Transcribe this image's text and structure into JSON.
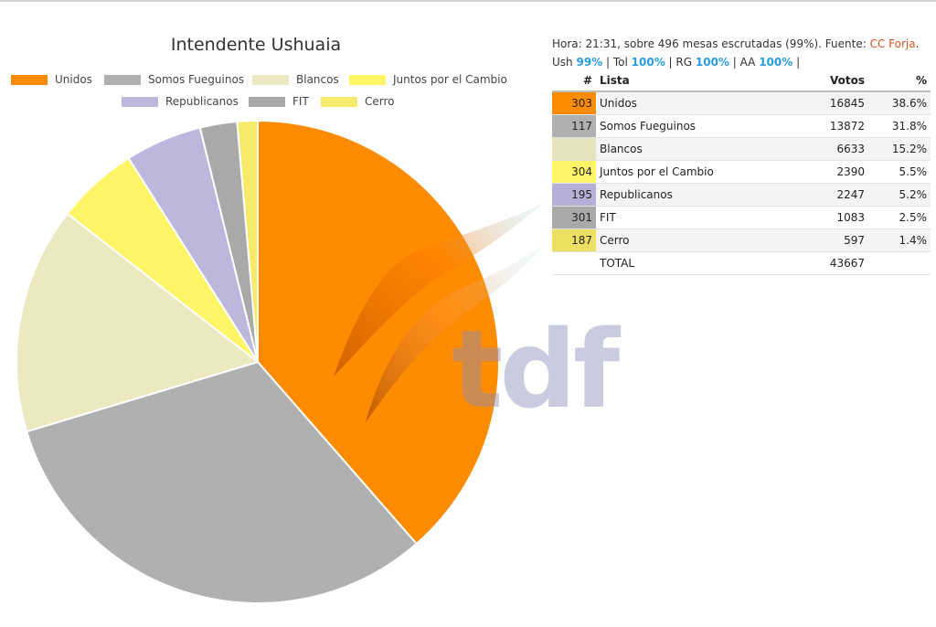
{
  "chart_data": {
    "type": "pie",
    "title": "Intendente Ushuaia",
    "legend": [
      {
        "name": "Unidos",
        "color": "#ff8c00"
      },
      {
        "name": "Somos Fueguinos",
        "color": "#b0b0b0"
      },
      {
        "name": "Blancos",
        "color": "#ece8c0"
      },
      {
        "name": "Juntos por el Cambio",
        "color": "#fff566"
      },
      {
        "name": "Republicanos",
        "color": "#bdb7dd"
      },
      {
        "name": "FIT",
        "color": "#a9a9a9"
      },
      {
        "name": "Cerro",
        "color": "#f7e96a"
      }
    ],
    "slices": [
      {
        "name": "Unidos",
        "value": 16845,
        "color": "#ff8c00"
      },
      {
        "name": "Somos Fueguinos",
        "value": 13872,
        "color": "#b0b0b0"
      },
      {
        "name": "Blancos",
        "value": 6633,
        "color": "#ece8c0"
      },
      {
        "name": "Juntos por el Cambio",
        "value": 2390,
        "color": "#fff566"
      },
      {
        "name": "Republicanos",
        "value": 2247,
        "color": "#bdb7dd"
      },
      {
        "name": "FIT",
        "value": 1083,
        "color": "#a9a9a9"
      },
      {
        "name": "Cerro",
        "value": 597,
        "color": "#f7e96a"
      }
    ]
  },
  "info": {
    "line1_text": "Hora: 21:31, sobre 496 mesas escrutadas (99%). Fuente: ",
    "source": "CC Forja",
    "line1_end": ".",
    "line2": [
      {
        "label": "Ush ",
        "value": "99%"
      },
      {
        "label": " | Tol ",
        "value": "100%"
      },
      {
        "label": " | RG ",
        "value": "100%"
      },
      {
        "label": " | AA ",
        "value": "100%"
      }
    ],
    "line2_end": " |"
  },
  "table": {
    "headers": {
      "num": "#",
      "list": "Lista",
      "votes": "Votos",
      "pct": "%"
    },
    "rows": [
      {
        "num": "303",
        "list": "Unidos",
        "votes": "16845",
        "pct": "38.6%",
        "color": "#ff8c00"
      },
      {
        "num": "117",
        "list": "Somos Fueguinos",
        "votes": "13872",
        "pct": "31.8%",
        "color": "#b0b0b0"
      },
      {
        "num": "",
        "list": "Blancos",
        "votes": "6633",
        "pct": "15.2%",
        "color": "#e6e2bd"
      },
      {
        "num": "304",
        "list": "Juntos por el Cambio",
        "votes": "2390",
        "pct": "5.5%",
        "color": "#fff566"
      },
      {
        "num": "195",
        "list": "Republicanos",
        "votes": "2247",
        "pct": "5.2%",
        "color": "#b5b0d8"
      },
      {
        "num": "301",
        "list": "FIT",
        "votes": "1083",
        "pct": "2.5%",
        "color": "#a9a9a9"
      },
      {
        "num": "187",
        "list": "Cerro",
        "votes": "597",
        "pct": "1.4%",
        "color": "#ecdf62"
      }
    ],
    "total": {
      "list": "TOTAL",
      "votes": "43667"
    }
  },
  "watermark": {
    "text": "tdf"
  }
}
